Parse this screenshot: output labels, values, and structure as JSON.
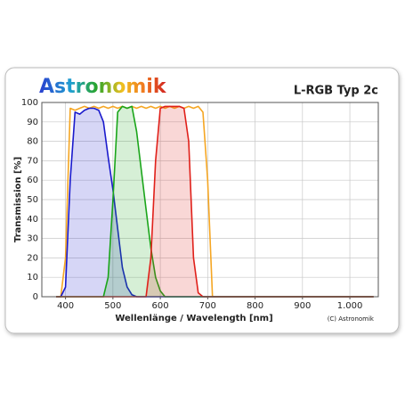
{
  "chart_data": {
    "type": "line",
    "logo": "Astronomik",
    "title": "L-RGB Typ 2c",
    "x_label": "Wellenlänge / Wavelength [nm]",
    "y_label": "Transmission [%]",
    "copyright": "(C) Astronomik",
    "x": [
      380,
      390,
      400,
      410,
      420,
      430,
      440,
      450,
      460,
      470,
      480,
      490,
      500,
      510,
      520,
      530,
      540,
      550,
      560,
      570,
      580,
      590,
      600,
      610,
      620,
      630,
      640,
      650,
      660,
      670,
      680,
      690,
      700,
      710,
      750,
      800,
      850,
      900,
      950,
      1000,
      1050
    ],
    "series": [
      {
        "color": "#f5a623",
        "fill": false,
        "values": [
          0,
          0,
          20,
          97,
          96,
          97,
          98,
          97,
          98,
          97,
          98,
          97,
          98,
          97,
          98,
          97,
          98,
          97,
          98,
          97,
          98,
          97,
          98,
          97,
          98,
          97,
          98,
          97,
          98,
          97,
          98,
          95,
          60,
          0,
          0,
          0,
          0,
          0,
          0,
          0,
          0
        ]
      },
      {
        "color": "#1a1acc",
        "fill": true,
        "values": [
          0,
          0,
          5,
          60,
          95,
          94,
          96,
          97,
          97,
          96,
          90,
          72,
          55,
          35,
          15,
          5,
          1,
          0,
          0,
          0,
          0,
          0,
          0,
          0,
          0,
          0,
          0,
          0,
          0,
          0,
          0,
          0,
          0,
          0,
          0,
          0,
          0,
          0,
          0,
          0,
          0
        ]
      },
      {
        "color": "#1aa51a",
        "fill": true,
        "values": [
          0,
          0,
          0,
          0,
          0,
          0,
          0,
          0,
          0,
          0,
          0,
          10,
          50,
          95,
          98,
          97,
          98,
          85,
          65,
          45,
          25,
          10,
          3,
          0,
          0,
          0,
          0,
          0,
          0,
          0,
          0,
          0,
          0,
          0,
          0,
          0,
          0,
          0,
          0,
          0,
          0
        ]
      },
      {
        "color": "#e0201a",
        "fill": true,
        "values": [
          0,
          0,
          0,
          0,
          0,
          0,
          0,
          0,
          0,
          0,
          0,
          0,
          0,
          0,
          0,
          0,
          0,
          0,
          0,
          0,
          20,
          70,
          97,
          98,
          98,
          98,
          98,
          97,
          80,
          20,
          2,
          0,
          0,
          0,
          0,
          0,
          0,
          0,
          0,
          0,
          0
        ]
      }
    ],
    "xlim": [
      350,
      1060
    ],
    "ylim": [
      0,
      100
    ],
    "xticks": [
      400,
      500,
      600,
      700,
      800,
      900,
      {
        "value": 1000,
        "label": "1.000"
      }
    ],
    "yticks": [
      0,
      10,
      20,
      30,
      40,
      50,
      60,
      70,
      80,
      90,
      100
    ],
    "grid": true
  }
}
